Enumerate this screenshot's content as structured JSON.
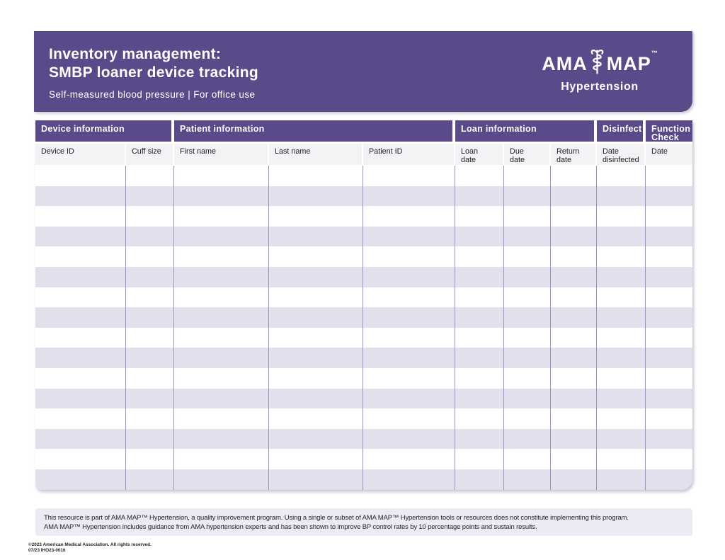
{
  "colors": {
    "brand_purple": "#5a4a8a",
    "row_lavender": "#e3e0ee",
    "divider_purple": "#9b91c3",
    "subheader_bg": "#f3f2f5",
    "disclaimer_bg": "#eceaf2"
  },
  "header": {
    "title_line1": "Inventory management:",
    "title_line2": "SMBP loaner device tracking",
    "subtitle": "Self-measured blood pressure | For office use",
    "logo": {
      "ama": "AMA",
      "map": "MAP",
      "trademark": "™",
      "program": "Hypertension"
    }
  },
  "table": {
    "row_count": 16,
    "group_headers": [
      "Device information",
      "Patient information",
      "Loan information",
      "Disinfect",
      "Function\nCheck"
    ],
    "columns": [
      "Device ID",
      "Cuff size",
      "First name",
      "Last name",
      "Patient ID",
      "Loan\ndate",
      "Due\ndate",
      "Return\ndate",
      "Date\ndisinfected",
      "Date"
    ]
  },
  "footer": {
    "disclaimer_line1": "This resource is part of AMA MAP™ Hypertension, a quality improvement program. Using a single or subset of AMA MAP™ Hypertension tools or resources does not constitute implementing this program.",
    "disclaimer_line2": "AMA MAP™ Hypertension includes guidance from AMA hypertension experts and has been shown to improve BP control rates by 10 percentage points and sustain results.",
    "copyright": "©2023 American Medical Association. All rights reserved.",
    "document_code": "07/23 IHO23-0016"
  }
}
